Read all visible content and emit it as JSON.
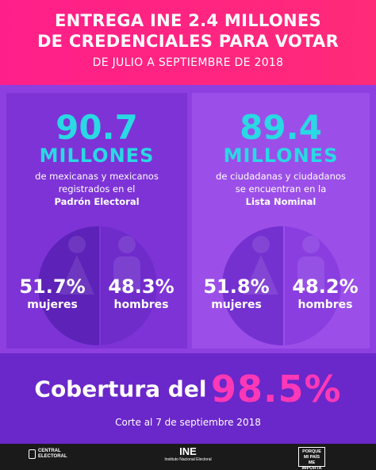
{
  "header": {
    "line1": "ENTREGA INE 2.4 MILLONES",
    "line2": "DE CREDENCIALES PARA VOTAR",
    "line3": "DE JULIO A SEPTIEMBRE DE 2018"
  },
  "padron": {
    "number": "90.7",
    "unit": "MILLONES",
    "desc1": "de mexicanas y mexicanos",
    "desc2": "registrados en el",
    "desc3": "Padrón Electoral",
    "women_pct": "51.7%",
    "women_label": "mujeres",
    "men_pct": "48.3%",
    "men_label": "hombres"
  },
  "lista": {
    "number": "89.4",
    "unit": "MILLONES",
    "desc1": "de ciudadanas y ciudadanos",
    "desc2": "se encuentran en la",
    "desc3": "Lista Nominal",
    "women_pct": "51.8%",
    "women_label": "mujeres",
    "men_pct": "48.2%",
    "men_label": "hombres"
  },
  "coverage": {
    "label": "Cobertura del",
    "value": "98.5%",
    "note": "Corte al 7 de septiembre 2018"
  },
  "footer": {
    "logo_left_line1": "CENTRAL",
    "logo_left_line2": "ELECTORAL",
    "logo_mid": "INE",
    "logo_mid_sub": "Instituto Nacional Electoral",
    "logo_right_line1": "PORQUE",
    "logo_right_line2": "MI PAÍS",
    "logo_right_line3": "ME IMPORTA"
  },
  "colors": {
    "header_pink": "#ff1f8a",
    "accent_cyan": "#29d9e3",
    "accent_magenta": "#ff38b7",
    "purple": "#7b2fd0"
  }
}
